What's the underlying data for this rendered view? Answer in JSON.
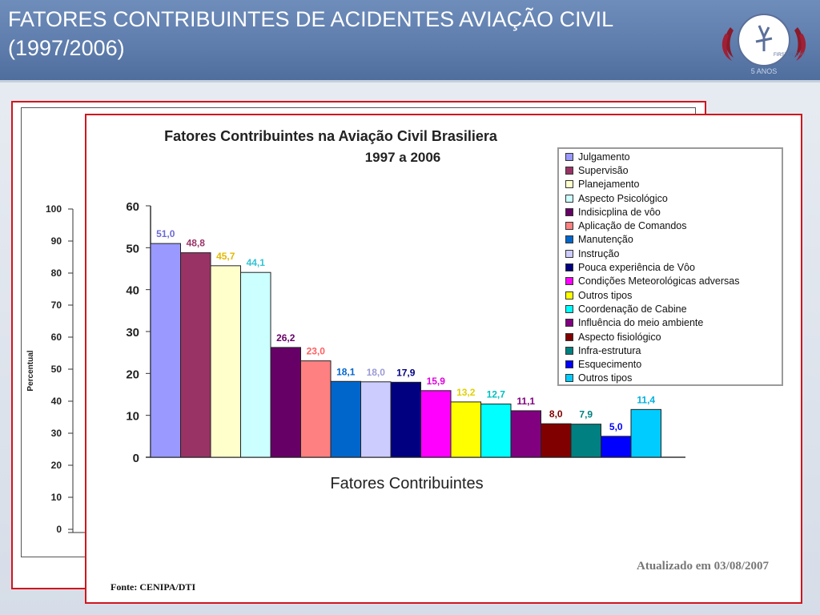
{
  "slide": {
    "title": "FATORES CONTRIBUINTES DE ACIDENTES AVIAÇÃO CIVIL (1997/2006)",
    "logo_text": "FIRST FLIGHT",
    "logo_subtext": "5 ANOS"
  },
  "background_chart": {
    "ylabel": "Percentual",
    "yticks": [
      "100",
      "90",
      "80",
      "70",
      "60",
      "50",
      "40",
      "30",
      "20",
      "10",
      "0"
    ]
  },
  "chart_data": {
    "type": "bar",
    "title": "Fatores Contribuintes na Aviação Civil Brasiliera",
    "subtitle": "1997 a 2006",
    "xlabel": "Fatores Contribuintes",
    "ylabel": "",
    "ylim": [
      0,
      60
    ],
    "yticks": [
      0,
      10,
      20,
      30,
      40,
      50,
      60
    ],
    "legend_position": "top-right",
    "categories": [
      "Julgamento",
      " Supervisão",
      "Planejamento",
      "Aspecto Psicológico",
      "Indisicplina de vôo",
      "Aplicação de Comandos",
      "Manutenção",
      "Instrução",
      "Pouca experiência de Vôo",
      "Condições Meteorológicas adversas",
      "Outros tipos",
      "Coordenação de Cabine",
      "Influência do meio ambiente",
      "Aspecto fisiológico",
      "Infra-estrutura",
      "Esquecimento",
      "Outros tipos"
    ],
    "values": [
      51.0,
      48.8,
      45.7,
      44.1,
      26.2,
      23.0,
      18.1,
      18.0,
      17.9,
      15.9,
      13.2,
      12.7,
      11.1,
      8.0,
      7.9,
      5.0,
      11.4
    ],
    "value_labels": [
      "51,0",
      "48,8",
      "45,7",
      "44,1",
      "26,2",
      "23,0",
      "18,1",
      "18,0",
      "17,9",
      "15,9",
      "13,2",
      "12,7",
      "11,1",
      "8,0",
      "7,9",
      "5,0",
      "11,4"
    ],
    "colors": [
      "#9999ff",
      "#993366",
      "#ffffcc",
      "#ccffff",
      "#660066",
      "#ff8080",
      "#0066cc",
      "#ccccff",
      "#000080",
      "#ff00ff",
      "#ffff00",
      "#00ffff",
      "#800080",
      "#800000",
      "#008080",
      "#0000ff",
      "#00ccff"
    ],
    "label_colors": [
      "#6b6bd6",
      "#993366",
      "#e3b900",
      "#33c3d6",
      "#660066",
      "#ff6060",
      "#0066cc",
      "#9a9ad6",
      "#000080",
      "#e000e0",
      "#e0d000",
      "#00c0c0",
      "#800080",
      "#800000",
      "#008080",
      "#0000ff",
      "#00b0e0"
    ]
  },
  "source": "Fonte: CENIPA/DTI",
  "updated": "Atualizado em 03/08/2007"
}
